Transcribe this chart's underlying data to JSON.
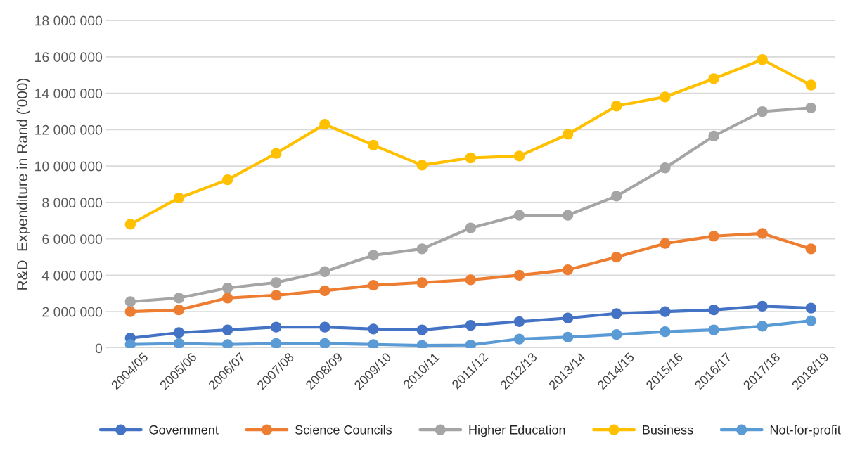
{
  "chart_data": {
    "type": "line",
    "ylabel": "R&D  Expenditure in Rand ('000)",
    "categories": [
      "2004/05",
      "2005/06",
      "2006/07",
      "2007/08",
      "2008/09",
      "2009/10",
      "2010/11",
      "2011/12",
      "2012/13",
      "2013/14",
      "2014/15",
      "2015/16",
      "2016/17",
      "2017/18",
      "2018/19"
    ],
    "series": [
      {
        "name": "Government",
        "color": "#4472c4",
        "values": [
          550000,
          850000,
          1000000,
          1150000,
          1150000,
          1050000,
          1000000,
          1250000,
          1450000,
          1650000,
          1900000,
          2000000,
          2100000,
          2300000,
          2200000
        ]
      },
      {
        "name": "Science Councils",
        "color": "#ed7d31",
        "values": [
          2000000,
          2100000,
          2750000,
          2900000,
          3150000,
          3450000,
          3600000,
          3750000,
          4000000,
          4300000,
          5000000,
          5750000,
          6150000,
          6300000,
          5450000
        ]
      },
      {
        "name": "Higher Education",
        "color": "#a5a5a5",
        "values": [
          2550000,
          2750000,
          3300000,
          3600000,
          4200000,
          5100000,
          5450000,
          6600000,
          7300000,
          7300000,
          8350000,
          9900000,
          11650000,
          13000000,
          13200000
        ]
      },
      {
        "name": "Business",
        "color": "#ffc000",
        "values": [
          6800000,
          8250000,
          9250000,
          10700000,
          12300000,
          11150000,
          10050000,
          10450000,
          10550000,
          11750000,
          13300000,
          13800000,
          14800000,
          15850000,
          14450000
        ]
      },
      {
        "name": "Not-for-profit",
        "color": "#5b9bd5",
        "values": [
          200000,
          250000,
          200000,
          250000,
          250000,
          200000,
          150000,
          170000,
          500000,
          600000,
          750000,
          900000,
          1000000,
          1200000,
          1500000
        ]
      }
    ],
    "ylim": [
      0,
      18000000
    ],
    "yticks": [
      {
        "value": 0,
        "label": "0"
      },
      {
        "value": 2000000,
        "label": "2 000 000"
      },
      {
        "value": 4000000,
        "label": "4 000 000"
      },
      {
        "value": 6000000,
        "label": "6 000 000"
      },
      {
        "value": 8000000,
        "label": "8 000 000"
      },
      {
        "value": 10000000,
        "label": "10 000 000"
      },
      {
        "value": 12000000,
        "label": "12 000 000"
      },
      {
        "value": 14000000,
        "label": "14 000 000"
      },
      {
        "value": 16000000,
        "label": "16 000 000"
      },
      {
        "value": 18000000,
        "label": "18 000 000"
      }
    ],
    "grid": "y",
    "legend": "bottom",
    "marker": "circle",
    "line_style": "solid"
  }
}
